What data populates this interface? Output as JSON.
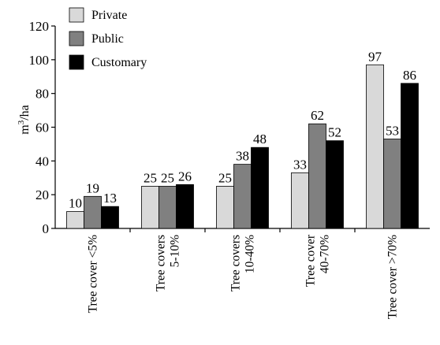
{
  "chart_data": {
    "type": "bar",
    "title": "",
    "xlabel": "",
    "ylabel": "m³/ha",
    "ylabel_base": "m",
    "ylabel_sup": "3",
    "ylabel_rest": "/ha",
    "ylim": [
      0,
      120
    ],
    "yticks": [
      0,
      20,
      40,
      60,
      80,
      100,
      120
    ],
    "grid": false,
    "legend_position": "top-left",
    "categories": [
      [
        "Tree cover <5%"
      ],
      [
        "Tree covers",
        "5-10%"
      ],
      [
        "Tree covers",
        "10-40%"
      ],
      [
        "Tree cover",
        "40-70%"
      ],
      [
        "Tree cover >70%"
      ]
    ],
    "series": [
      {
        "name": "Private",
        "color": "#d9d9d9",
        "values": [
          10,
          25,
          25,
          33,
          97
        ]
      },
      {
        "name": "Public",
        "color": "#808080",
        "values": [
          19,
          25,
          38,
          62,
          53
        ]
      },
      {
        "name": "Customary",
        "color": "#000000",
        "values": [
          13,
          26,
          48,
          52,
          86
        ]
      }
    ]
  }
}
